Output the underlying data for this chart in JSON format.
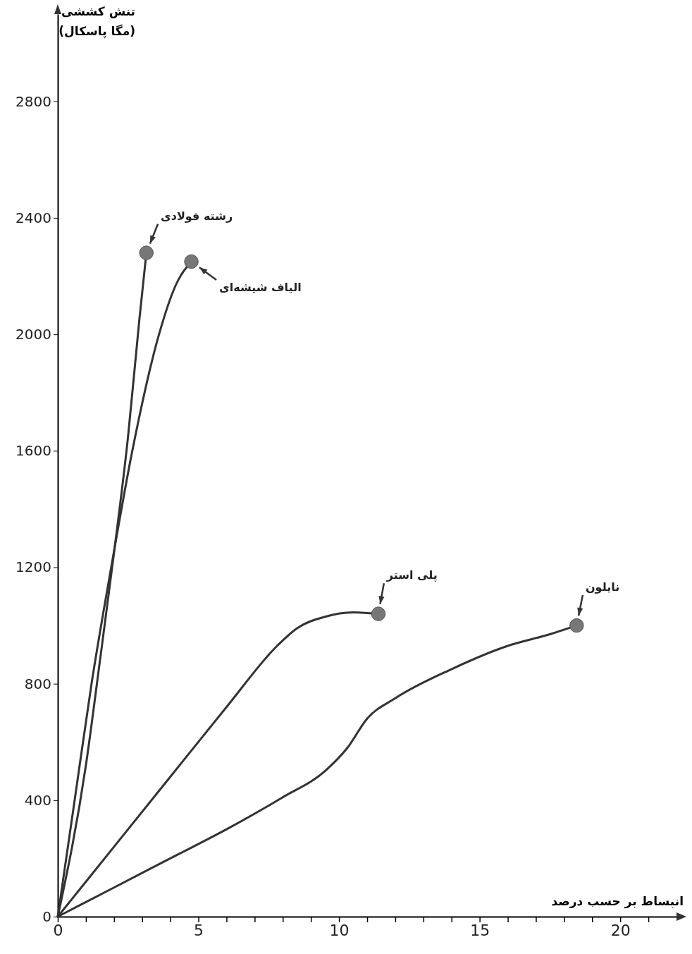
{
  "chart_data": {
    "type": "line",
    "xlabel": "انبساط بر حسب درصد",
    "ylabel": "تنش کششی (مگا پاسکال)",
    "xlim": [
      0,
      22
    ],
    "ylim": [
      0,
      3100
    ],
    "xticks": [
      0,
      {
        "value": 1,
        "label": null
      },
      {
        "value": 2,
        "label": null
      },
      {
        "value": 3,
        "label": null
      },
      {
        "value": 4,
        "label": null
      },
      5,
      {
        "value": 6,
        "label": null
      },
      {
        "value": 7,
        "label": null
      },
      {
        "value": 8,
        "label": null
      },
      {
        "value": 9,
        "label": null
      },
      10,
      {
        "value": 11,
        "label": null
      },
      {
        "value": 12,
        "label": null
      },
      {
        "value": 13,
        "label": null
      },
      {
        "value": 14,
        "label": null
      },
      15,
      {
        "value": 16,
        "label": null
      },
      {
        "value": 17,
        "label": null
      },
      {
        "value": 18,
        "label": null
      },
      {
        "value": 19,
        "label": null
      },
      20,
      {
        "value": 21,
        "label": null
      }
    ],
    "yticks": [
      0,
      400,
      800,
      1200,
      1600,
      2000,
      2400,
      2800
    ],
    "grid": false,
    "marker": "none",
    "line_style": "solid",
    "series": [
      {
        "name": "رشته فولادی",
        "color": "#333333",
        "x": [
          0,
          1,
          1.5,
          2,
          2.5,
          2.9,
          3.15
        ],
        "values": [
          0,
          520,
          880,
          1250,
          1650,
          2050,
          2280
        ]
      },
      {
        "name": "الیاف شیشه‌ای",
        "color": "#333333",
        "x": [
          0,
          0.6,
          1.2,
          1.9,
          2.65,
          3.6,
          4.2,
          4.75
        ],
        "values": [
          0,
          400,
          800,
          1200,
          1600,
          2000,
          2170,
          2250
        ]
      },
      {
        "name": "پلی استر",
        "color": "#333333",
        "x": [
          0,
          2,
          4,
          6,
          7.8,
          8.5,
          9.5,
          10.5,
          11.4
        ],
        "values": [
          0,
          240,
          480,
          720,
          930,
          990,
          1030,
          1045,
          1040
        ]
      },
      {
        "name": "نایلون",
        "color": "#333333",
        "x": [
          0,
          2,
          4,
          6,
          8,
          9.5,
          10.3,
          11,
          12,
          14,
          16,
          17.5,
          18.45
        ],
        "values": [
          0,
          100,
          200,
          300,
          410,
          500,
          580,
          680,
          750,
          850,
          930,
          970,
          1000
        ]
      },
      {
        "type": "scatter",
        "marker": "circle",
        "color": "#777777",
        "x": [
          3.15,
          4.75,
          11.4,
          18.45
        ],
        "values": [
          2280,
          2250,
          1040,
          1000
        ]
      }
    ]
  }
}
